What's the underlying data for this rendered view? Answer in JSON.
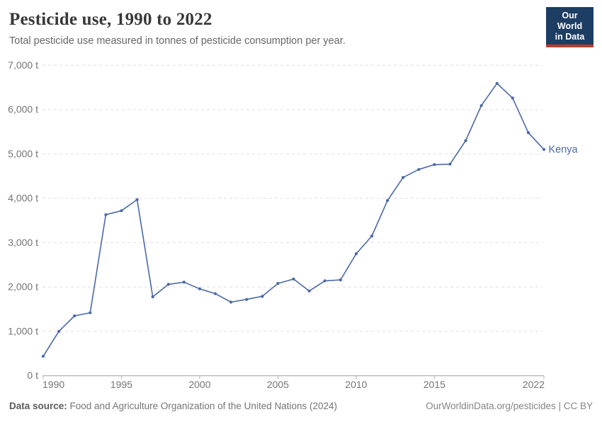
{
  "header": {
    "title": "Pesticide use, 1990 to 2022",
    "subtitle": "Total pesticide use measured in tonnes of pesticide consumption per year."
  },
  "logo": {
    "line1": "Our World",
    "line2": "in Data",
    "bg_color": "#1d3d63",
    "accent_color": "#c0392b"
  },
  "chart_data": {
    "type": "line",
    "title": "Pesticide use, 1990 to 2022",
    "xlabel": "",
    "ylabel": "",
    "unit": "t",
    "grid": "horizontal-dashed",
    "legend_position": "end-of-line-label",
    "xlim": [
      1990,
      2022
    ],
    "ylim": [
      0,
      7000
    ],
    "x_ticks": [
      1990,
      1995,
      2000,
      2005,
      2010,
      2015,
      2022
    ],
    "x_tick_labels": [
      "1990",
      "1995",
      "2000",
      "2005",
      "2010",
      "2015",
      "2022"
    ],
    "y_ticks": [
      0,
      1000,
      2000,
      3000,
      4000,
      5000,
      6000,
      7000
    ],
    "y_tick_labels": [
      "0 t",
      "1,000 t",
      "2,000 t",
      "3,000 t",
      "4,000 t",
      "5,000 t",
      "6,000 t",
      "7,000 t"
    ],
    "series": [
      {
        "name": "Kenya",
        "color": "#4a69a7",
        "x": [
          1990,
          1991,
          1992,
          1993,
          1994,
          1995,
          1996,
          1997,
          1998,
          1999,
          2000,
          2001,
          2002,
          2003,
          2004,
          2005,
          2006,
          2007,
          2008,
          2009,
          2010,
          2011,
          2012,
          2013,
          2014,
          2015,
          2016,
          2017,
          2018,
          2019,
          2020,
          2021,
          2022
        ],
        "values": [
          440,
          1000,
          1350,
          1420,
          3630,
          3720,
          3970,
          1780,
          2060,
          2110,
          1960,
          1850,
          1660,
          1720,
          1790,
          2080,
          2180,
          1910,
          2140,
          2160,
          2750,
          3150,
          3950,
          4470,
          4650,
          4760,
          4770,
          5300,
          6090,
          6590,
          6260,
          5480,
          5100
        ]
      }
    ]
  },
  "footer": {
    "source_label": "Data source:",
    "source_text": " Food and Agriculture Organization of the United Nations (2024)",
    "credit": "OurWorldinData.org/pesticides | CC BY"
  }
}
